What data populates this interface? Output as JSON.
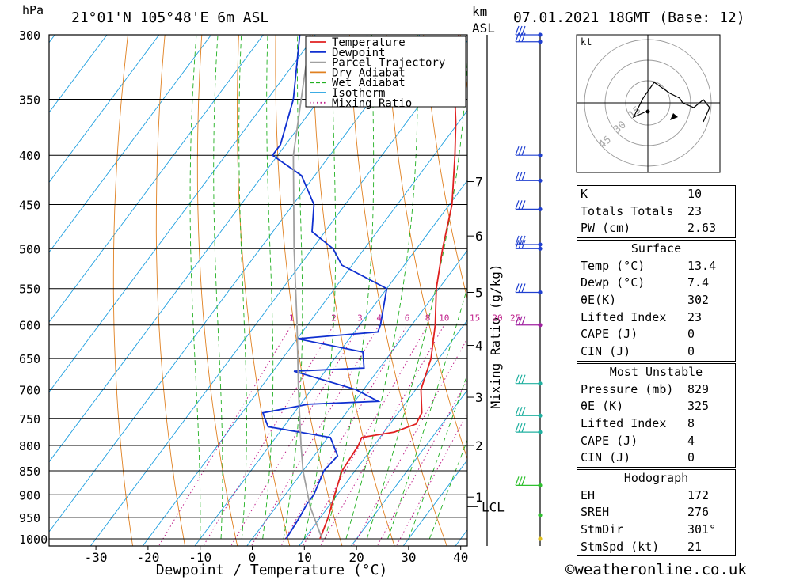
{
  "header": {
    "pressure_unit": "hPa",
    "location": "21°01'N  105°48'E  6m  ASL",
    "km_label": "km",
    "asl_label": "ASL",
    "date": "07.01.2021  18GMT  (Base: 12)"
  },
  "chart_data": {
    "type": "skew-t log-p",
    "xlabel": "Dewpoint / Temperature (°C)",
    "ylabel_right": "Mixing Ratio (g/kg)",
    "xlim": [
      -40,
      40
    ],
    "ylim_hpa": [
      1000,
      300
    ],
    "x_ticks": [
      -30,
      -20,
      -10,
      0,
      10,
      20,
      30,
      40
    ],
    "pressure_levels": [
      300,
      350,
      400,
      450,
      500,
      550,
      600,
      650,
      700,
      750,
      800,
      850,
      900,
      950,
      1000
    ],
    "height_ticks_km": [
      {
        "label": "7",
        "p": 426
      },
      {
        "label": "6",
        "p": 485
      },
      {
        "label": "5",
        "p": 555
      },
      {
        "label": "4",
        "p": 630
      },
      {
        "label": "3",
        "p": 713
      },
      {
        "label": "2",
        "p": 800
      },
      {
        "label": "1",
        "p": 905
      }
    ],
    "lcl": {
      "label": "LCL",
      "p": 926
    },
    "mixing_ratio_labels": [
      "1",
      "2",
      "3",
      "4",
      "6",
      "8",
      "10",
      "15",
      "20",
      "25"
    ],
    "legend": [
      {
        "name": "Temperature",
        "color": "#e02020",
        "style": "solid"
      },
      {
        "name": "Dewpoint",
        "color": "#1030d0",
        "style": "solid"
      },
      {
        "name": "Parcel Trajectory",
        "color": "#a0a0a0",
        "style": "solid"
      },
      {
        "name": "Dry Adiabat",
        "color": "#e08020",
        "style": "solid"
      },
      {
        "name": "Wet Adiabat",
        "color": "#20b020",
        "style": "dashed"
      },
      {
        "name": "Isotherm",
        "color": "#20a0e0",
        "style": "solid"
      },
      {
        "name": "Mixing Ratio",
        "color": "#c0208a",
        "style": "dotted"
      }
    ],
    "series": [
      {
        "name": "Temperature",
        "points": [
          {
            "p": 1000,
            "t": 13.0
          },
          {
            "p": 950,
            "t": 11.5
          },
          {
            "p": 900,
            "t": 9.5
          },
          {
            "p": 850,
            "t": 7.5
          },
          {
            "p": 800,
            "t": 7.0
          },
          {
            "p": 785,
            "t": 6.5
          },
          {
            "p": 775,
            "t": 12.0
          },
          {
            "p": 760,
            "t": 15.0
          },
          {
            "p": 740,
            "t": 14.5
          },
          {
            "p": 700,
            "t": 11.0
          },
          {
            "p": 650,
            "t": 8.5
          },
          {
            "p": 600,
            "t": 4.5
          },
          {
            "p": 550,
            "t": -0.5
          },
          {
            "p": 500,
            "t": -5.0
          },
          {
            "p": 450,
            "t": -9.5
          },
          {
            "p": 400,
            "t": -16.0
          },
          {
            "p": 370,
            "t": -20.5
          },
          {
            "p": 350,
            "t": -24.0
          },
          {
            "p": 320,
            "t": -28.5
          },
          {
            "p": 300,
            "t": -32.5
          }
        ]
      },
      {
        "name": "Dewpoint",
        "points": [
          {
            "p": 1000,
            "t": 6.5
          },
          {
            "p": 950,
            "t": 6.0
          },
          {
            "p": 920,
            "t": 5.5
          },
          {
            "p": 900,
            "t": 5.5
          },
          {
            "p": 850,
            "t": 4.0
          },
          {
            "p": 820,
            "t": 4.5
          },
          {
            "p": 785,
            "t": 0.5
          },
          {
            "p": 765,
            "t": -13.0
          },
          {
            "p": 740,
            "t": -16.0
          },
          {
            "p": 725,
            "t": -8.5
          },
          {
            "p": 720,
            "t": 4.5
          },
          {
            "p": 700,
            "t": -1.5
          },
          {
            "p": 670,
            "t": -16.0
          },
          {
            "p": 665,
            "t": -3.0
          },
          {
            "p": 640,
            "t": -5.5
          },
          {
            "p": 620,
            "t": -20.0
          },
          {
            "p": 610,
            "t": -5.5
          },
          {
            "p": 600,
            "t": -6.0
          },
          {
            "p": 550,
            "t": -10.0
          },
          {
            "p": 520,
            "t": -22.0
          },
          {
            "p": 500,
            "t": -26.0
          },
          {
            "p": 480,
            "t": -32.5
          },
          {
            "p": 450,
            "t": -36.0
          },
          {
            "p": 420,
            "t": -42.5
          },
          {
            "p": 400,
            "t": -51.0
          },
          {
            "p": 390,
            "t": -51.0
          },
          {
            "p": 350,
            "t": -55.0
          },
          {
            "p": 300,
            "t": -63.0
          }
        ]
      },
      {
        "name": "Parcel Trajectory",
        "points": [
          {
            "p": 1000,
            "t": 13.4
          },
          {
            "p": 926,
            "t": 6.5
          },
          {
            "p": 850,
            "t": 0.0
          },
          {
            "p": 800,
            "t": -4.0
          },
          {
            "p": 700,
            "t": -12.5
          },
          {
            "p": 600,
            "t": -22.0
          },
          {
            "p": 500,
            "t": -33.5
          },
          {
            "p": 400,
            "t": -47.0
          },
          {
            "p": 300,
            "t": -61.0
          }
        ]
      }
    ],
    "wind_barb_levels_hpa": [
      300,
      305,
      400,
      425,
      455,
      495,
      500,
      555,
      600,
      690,
      745,
      775,
      880,
      945,
      1000
    ],
    "hodograph": {
      "unit_label": "kt",
      "ring_labels": [
        "15",
        "30",
        "45"
      ]
    }
  },
  "indices": {
    "rows": [
      {
        "label": "K",
        "value": "10"
      },
      {
        "label": "Totals Totals",
        "value": "23"
      },
      {
        "label": "PW (cm)",
        "value": "2.63"
      }
    ]
  },
  "surface": {
    "title": "Surface",
    "rows": [
      {
        "label": "Temp (°C)",
        "value": "13.4"
      },
      {
        "label": "Dewp (°C)",
        "value": "7.4"
      },
      {
        "label": "θE(K)",
        "value": "302"
      },
      {
        "label": "Lifted Index",
        "value": "23"
      },
      {
        "label": "CAPE (J)",
        "value": "0"
      },
      {
        "label": "CIN (J)",
        "value": "0"
      }
    ]
  },
  "most_unstable": {
    "title": "Most Unstable",
    "rows": [
      {
        "label": "Pressure (mb)",
        "value": "829"
      },
      {
        "label": "θE (K)",
        "value": "325"
      },
      {
        "label": "Lifted Index",
        "value": "8"
      },
      {
        "label": "CAPE (J)",
        "value": "4"
      },
      {
        "label": "CIN (J)",
        "value": "0"
      }
    ]
  },
  "hodograph_table": {
    "title": "Hodograph",
    "rows": [
      {
        "label": "EH",
        "value": "172"
      },
      {
        "label": "SREH",
        "value": "276"
      },
      {
        "label": "StmDir",
        "value": "301°"
      },
      {
        "label": "StmSpd (kt)",
        "value": "21"
      }
    ]
  },
  "footer": {
    "credit": "©weatheronline.co.uk"
  }
}
